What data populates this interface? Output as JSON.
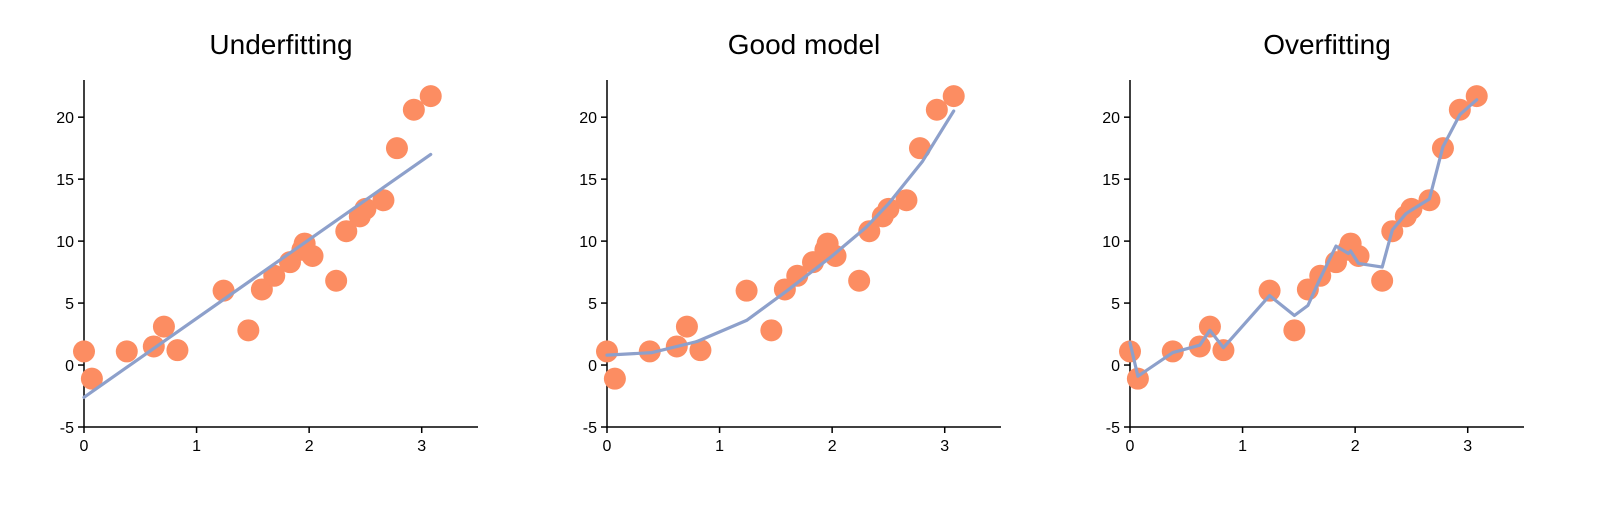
{
  "colors": {
    "points": "#fc8d62",
    "line": "#8da0cb"
  },
  "chart_data": [
    {
      "type": "scatter",
      "title": "Underfitting",
      "xlabel": "",
      "ylabel": "",
      "xlim": [
        0,
        3.5
      ],
      "ylim": [
        -5,
        23
      ],
      "xticks": [
        0,
        1,
        2,
        3
      ],
      "yticks": [
        -5,
        0,
        5,
        10,
        15,
        20
      ],
      "grid": false,
      "points": {
        "x": [
          0.0,
          0.07,
          0.38,
          0.62,
          0.71,
          0.83,
          1.24,
          1.46,
          1.58,
          1.69,
          1.83,
          1.94,
          1.96,
          2.03,
          2.24,
          2.33,
          2.45,
          2.5,
          2.66,
          2.78,
          2.93,
          3.08
        ],
        "y": [
          1.1,
          -1.1,
          1.1,
          1.5,
          3.1,
          1.2,
          6.0,
          2.8,
          6.1,
          7.2,
          8.3,
          9.3,
          9.8,
          8.8,
          6.8,
          10.8,
          12.0,
          12.6,
          13.3,
          17.5,
          20.6,
          21.7
        ]
      },
      "fit": {
        "x": [
          0.0,
          3.08
        ],
        "y": [
          -2.6,
          17.0
        ]
      }
    },
    {
      "type": "scatter",
      "title": "Good model",
      "xlabel": "",
      "ylabel": "",
      "xlim": [
        0,
        3.5
      ],
      "ylim": [
        -5,
        23
      ],
      "xticks": [
        0,
        1,
        2,
        3
      ],
      "yticks": [
        -5,
        0,
        5,
        10,
        15,
        20
      ],
      "grid": false,
      "points": {
        "x": [
          0.0,
          0.07,
          0.38,
          0.62,
          0.71,
          0.83,
          1.24,
          1.46,
          1.58,
          1.69,
          1.83,
          1.94,
          1.96,
          2.03,
          2.24,
          2.33,
          2.45,
          2.5,
          2.66,
          2.78,
          2.93,
          3.08
        ],
        "y": [
          1.1,
          -1.1,
          1.1,
          1.5,
          3.1,
          1.2,
          6.0,
          2.8,
          6.1,
          7.2,
          8.3,
          9.3,
          9.8,
          8.8,
          6.8,
          10.8,
          12.0,
          12.6,
          13.3,
          17.5,
          20.6,
          21.7
        ]
      },
      "fit": {
        "x": [
          0.0,
          0.4,
          0.8,
          1.24,
          1.6,
          2.0,
          2.3,
          2.5,
          2.8,
          3.08
        ],
        "y": [
          0.8,
          1.0,
          1.9,
          3.6,
          6.0,
          8.8,
          11.1,
          13.0,
          16.4,
          20.5
        ]
      }
    },
    {
      "type": "scatter",
      "title": "Overfitting",
      "xlabel": "",
      "ylabel": "",
      "xlim": [
        0,
        3.5
      ],
      "ylim": [
        -5,
        23
      ],
      "xticks": [
        0,
        1,
        2,
        3
      ],
      "yticks": [
        -5,
        0,
        5,
        10,
        15,
        20
      ],
      "grid": false,
      "points": {
        "x": [
          0.0,
          0.07,
          0.38,
          0.62,
          0.71,
          0.83,
          1.24,
          1.46,
          1.58,
          1.69,
          1.83,
          1.94,
          1.96,
          2.03,
          2.24,
          2.33,
          2.45,
          2.5,
          2.66,
          2.78,
          2.93,
          3.08
        ],
        "y": [
          1.1,
          -1.1,
          1.1,
          1.5,
          3.1,
          1.2,
          6.0,
          2.8,
          6.1,
          7.2,
          8.3,
          9.3,
          9.8,
          8.8,
          6.8,
          10.8,
          12.0,
          12.6,
          13.3,
          17.5,
          20.6,
          21.7
        ]
      },
      "fit": {
        "x": [
          0.0,
          0.07,
          0.38,
          0.62,
          0.71,
          0.83,
          1.24,
          1.46,
          1.58,
          1.69,
          1.83,
          1.94,
          1.96,
          2.03,
          2.24,
          2.33,
          2.45,
          2.5,
          2.66,
          2.78,
          2.93,
          3.08
        ],
        "y": [
          1.8,
          -0.9,
          1.0,
          1.6,
          2.8,
          1.4,
          5.6,
          4.0,
          4.8,
          7.0,
          9.6,
          9.0,
          9.2,
          8.2,
          7.9,
          10.9,
          12.2,
          12.5,
          13.4,
          17.6,
          20.2,
          21.4
        ]
      }
    }
  ]
}
